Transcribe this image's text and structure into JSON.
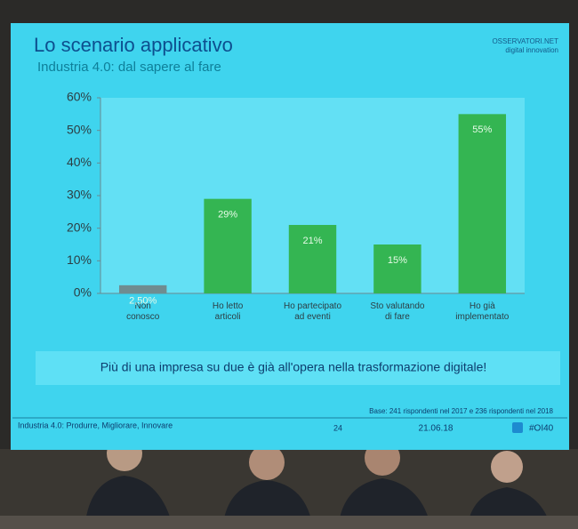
{
  "logo": {
    "name": "OSSERVATORI.NET",
    "tagline": "digital innovation"
  },
  "chart_data": {
    "type": "bar",
    "title": "Lo scenario applicativo",
    "subtitle": "Industria 4.0: dal sapere al fare",
    "categories": [
      "Non\nconosco",
      "Ho letto\narticoli",
      "Ho partecipato\nad eventi",
      "Sto valutando\ndi fare",
      "Ho già\nimplementato"
    ],
    "values": [
      2.5,
      29,
      21,
      15,
      55
    ],
    "value_labels": [
      "2,50%",
      "29%",
      "21%",
      "15%",
      "55%"
    ],
    "colors": [
      "#6f8c90",
      "#34b552",
      "#34b552",
      "#34b552",
      "#34b552"
    ],
    "ylim": [
      0,
      60
    ],
    "yticks": [
      {
        "value": 0,
        "label": "0%"
      },
      {
        "value": 10,
        "label": "10%"
      },
      {
        "value": 20,
        "label": "20%"
      },
      {
        "value": 30,
        "label": "30%"
      },
      {
        "value": 40,
        "label": "40%"
      },
      {
        "value": 50,
        "label": "50%"
      },
      {
        "value": 60,
        "label": "60%"
      }
    ],
    "grid": false
  },
  "message": "Più di una impresa su due è già all'opera nella trasformazione digitale!",
  "note": "Base: 241 rispondenti nel 2017 e 236 rispondenti nel 2018",
  "footer": {
    "left": "Industria 4.0: Produrre, Migliorare, Innovare",
    "page": "24",
    "date": "21.06.18",
    "hashtag": "#OI40"
  }
}
